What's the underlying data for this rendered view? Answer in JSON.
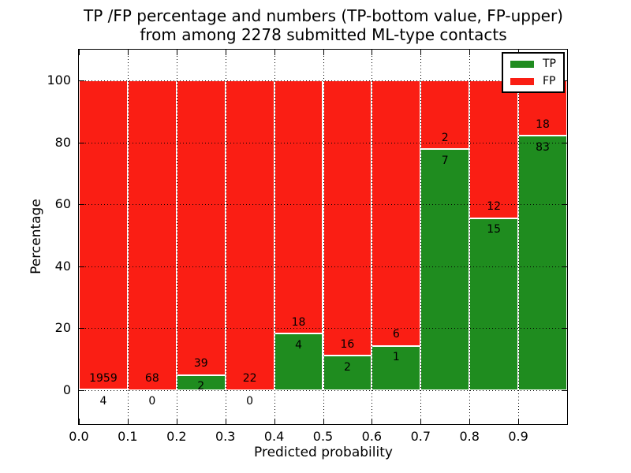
{
  "title": {
    "line1": "TP /FP percentage and numbers (TP-bottom value, FP-upper)",
    "line2": "from among 2278 submitted ML-type contacts"
  },
  "chart_data": {
    "type": "bar",
    "stacked": true,
    "title": "TP /FP percentage and numbers (TP-bottom value, FP-upper)\nfrom among 2278 submitted ML-type contacts",
    "xlabel": "Predicted probability",
    "ylabel": "Percentage",
    "total_submitted_contacts": 2278,
    "bin_edges": [
      0.0,
      0.1,
      0.2,
      0.3,
      0.4,
      0.5,
      0.6,
      0.7,
      0.8,
      0.9,
      1.0
    ],
    "series": [
      {
        "name": "TP",
        "color": "#1f8c1f",
        "counts": [
          4,
          0,
          2,
          0,
          4,
          2,
          1,
          7,
          15,
          83
        ],
        "percent": [
          0.2,
          0.0,
          4.88,
          0.0,
          18.18,
          11.11,
          14.29,
          77.78,
          55.56,
          82.18
        ]
      },
      {
        "name": "FP",
        "color": "#fa1e14",
        "counts": [
          1959,
          68,
          39,
          22,
          18,
          16,
          6,
          2,
          12,
          18
        ],
        "percent": [
          99.8,
          100.0,
          95.12,
          100.0,
          81.82,
          88.89,
          85.71,
          22.22,
          44.44,
          17.82
        ]
      }
    ],
    "xlim": [
      0.0,
      1.0
    ],
    "ylim": [
      -11,
      110
    ],
    "xticks": {
      "values": [
        0.0,
        0.1,
        0.2,
        0.3,
        0.4,
        0.5,
        0.6,
        0.7,
        0.8,
        0.9
      ],
      "labels": [
        "0.0",
        "0.1",
        "0.2",
        "0.3",
        "0.4",
        "0.5",
        "0.6",
        "0.7",
        "0.8",
        "0.9"
      ]
    },
    "yticks": {
      "values": [
        0,
        20,
        40,
        60,
        80,
        100
      ],
      "labels": [
        "0",
        "20",
        "40",
        "60",
        "80",
        "100"
      ]
    },
    "grid": true,
    "grid_style": "dotted",
    "bar_edge_color": "#ffffff",
    "legend": {
      "position": "upper right",
      "entries": [
        {
          "label": "TP",
          "color": "#1f8c1f"
        },
        {
          "label": "FP",
          "color": "#fa1e14"
        }
      ]
    }
  }
}
